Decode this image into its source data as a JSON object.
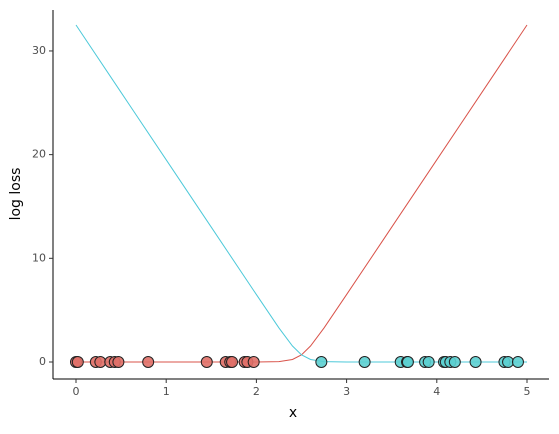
{
  "chart_data": {
    "type": "line",
    "xlabel": "x",
    "ylabel": "log loss",
    "xlim": [
      -0.255,
      5.244
    ],
    "ylim": [
      -1.64,
      33.95
    ],
    "xticks": [
      0,
      1,
      2,
      3,
      4,
      5
    ],
    "yticks": [
      0,
      10,
      20,
      30
    ],
    "x": [
      0,
      0.5,
      1.0,
      1.5,
      2.0,
      2.25,
      2.4,
      2.5,
      2.6,
      2.75,
      3.0,
      3.5,
      4.0,
      4.5,
      5.0
    ],
    "series": [
      {
        "color": "#d9534a",
        "values": [
          0,
          0,
          0,
          0,
          0.0015,
          0.038,
          0.241,
          0.693,
          1.541,
          3.288,
          6.5015,
          13,
          19.5,
          26,
          32.5
        ]
      },
      {
        "color": "#4dc9d9",
        "values": [
          32.5,
          26,
          19.5,
          13,
          6.5015,
          3.288,
          1.541,
          0.693,
          0.241,
          0.038,
          0.0015,
          0,
          0,
          0,
          0
        ]
      }
    ],
    "points": [
      {
        "color": "#e07068",
        "x": [
          0.0,
          0.02,
          0.22,
          0.27,
          0.38,
          0.43,
          0.47,
          0.8,
          1.45,
          1.66,
          1.71,
          1.73,
          1.87,
          1.9,
          1.97
        ],
        "values": [
          0,
          0,
          0,
          0,
          0,
          0,
          0,
          0,
          0,
          0,
          0,
          0,
          0,
          0,
          0
        ]
      },
      {
        "color": "#5ccfd0",
        "x": [
          2.72,
          3.2,
          3.6,
          3.67,
          3.68,
          3.87,
          3.91,
          4.08,
          4.1,
          4.15,
          4.2,
          4.43,
          4.75,
          4.79,
          4.9
        ],
        "values": [
          0,
          0,
          0,
          0,
          0,
          0,
          0,
          0,
          0,
          0,
          0,
          0,
          0,
          0,
          0
        ]
      }
    ]
  }
}
